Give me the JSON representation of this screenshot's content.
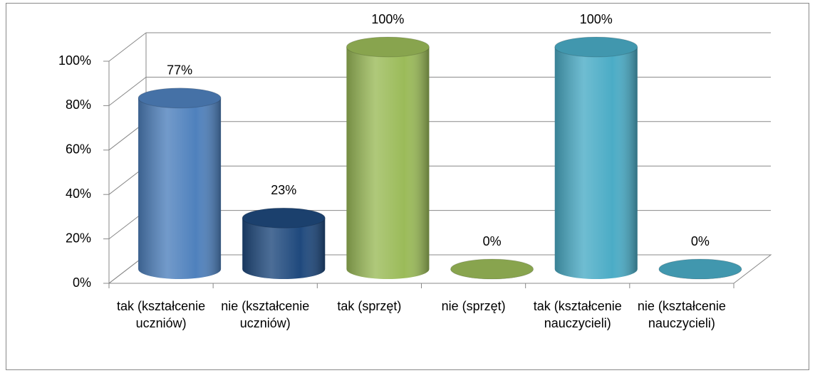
{
  "chart_data": {
    "type": "bar3d",
    "categories": [
      "tak (kształcenie uczniów)",
      "nie (kształcenie uczniów)",
      "tak (sprzęt)",
      "nie (sprzęt)",
      "tak (kształcenie nauczycieli)",
      "nie (kształcenie nauczycieli)"
    ],
    "values": [
      77,
      23,
      100,
      0,
      100,
      0
    ],
    "value_labels": [
      "77%",
      "23%",
      "100%",
      "0%",
      "100%",
      "0%"
    ],
    "colors": [
      "#4f81bd",
      "#1f497d",
      "#9bbb59",
      "#9bbb59",
      "#4bacc6",
      "#4bacc6"
    ],
    "ylim": [
      0,
      100
    ],
    "yticks": [
      {
        "value": 0,
        "label": "0%"
      },
      {
        "value": 20,
        "label": "20%"
      },
      {
        "value": 40,
        "label": "40%"
      },
      {
        "value": 60,
        "label": "60%"
      },
      {
        "value": 80,
        "label": "80%"
      },
      {
        "value": 100,
        "label": "100%"
      }
    ],
    "grid": true
  }
}
